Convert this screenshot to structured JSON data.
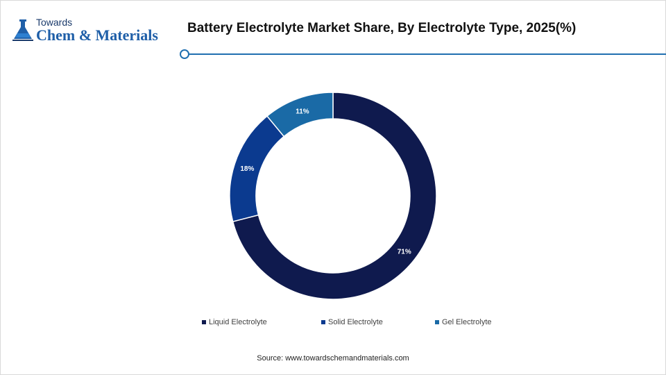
{
  "logo": {
    "top_text": "Towards",
    "main_text": "Chem & Materials",
    "icon": "flask-icon"
  },
  "header": {
    "title": "Battery Electrolyte Market Share, By Electrolyte Type, 2025(%)"
  },
  "chart_data": {
    "type": "pie",
    "variant": "donut",
    "categories": [
      "Liquid Electrolyte",
      "Solid Electrolyte",
      "Gel Electrolyte"
    ],
    "values": [
      71,
      18,
      11
    ],
    "labels": [
      "71%",
      "18%",
      "11%"
    ],
    "colors": [
      "#0f1a4e",
      "#0b3a8f",
      "#1a6aa6"
    ],
    "legend_position": "bottom"
  },
  "legend": {
    "items": [
      {
        "label": "Liquid Electrolyte",
        "color": "#0f1a4e"
      },
      {
        "label": "Solid Electrolyte",
        "color": "#0b3a8f"
      },
      {
        "label": "Gel Electrolyte",
        "color": "#1a6aa6"
      }
    ]
  },
  "footer": {
    "source": "Source: www.towardschemandmaterials.com"
  }
}
